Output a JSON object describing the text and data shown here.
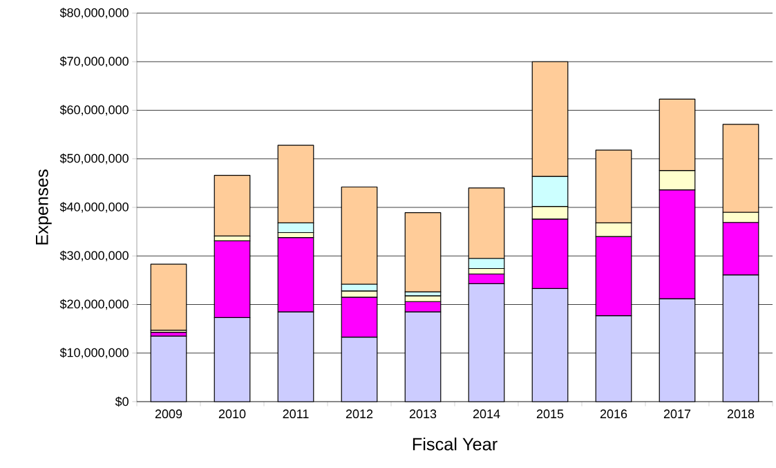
{
  "chart_data": {
    "type": "bar",
    "stacked": true,
    "xlabel": "Fiscal Year",
    "ylabel": "Expenses",
    "categories": [
      "2009",
      "2010",
      "2011",
      "2012",
      "2013",
      "2014",
      "2015",
      "2016",
      "2017",
      "2018"
    ],
    "series": [
      {
        "color": "#ccccff",
        "values": [
          13500000,
          17300000,
          18500000,
          13300000,
          18500000,
          24300000,
          23300000,
          17700000,
          21200000,
          26100000
        ]
      },
      {
        "color": "#ff00ff",
        "values": [
          800000,
          15800000,
          15300000,
          8200000,
          2100000,
          2000000,
          14300000,
          16300000,
          22400000,
          10800000
        ]
      },
      {
        "color": "#ffffcc",
        "values": [
          400000,
          1000000,
          1000000,
          1300000,
          1200000,
          1100000,
          2600000,
          2800000,
          4000000,
          2100000
        ]
      },
      {
        "color": "#ccffff",
        "values": [
          null,
          null,
          2000000,
          1400000,
          800000,
          2100000,
          6200000,
          null,
          null,
          null
        ]
      },
      {
        "color": "#ffcc99",
        "values": [
          13600000,
          12500000,
          16000000,
          20000000,
          16300000,
          14500000,
          23600000,
          15000000,
          14700000,
          18100000
        ]
      }
    ],
    "ylim": [
      0,
      80000000
    ],
    "yticks": [
      {
        "value": 0,
        "label": "$0"
      },
      {
        "value": 10000000,
        "label": "$10,000,000"
      },
      {
        "value": 20000000,
        "label": "$20,000,000"
      },
      {
        "value": 30000000,
        "label": "$30,000,000"
      },
      {
        "value": 40000000,
        "label": "$40,000,000"
      },
      {
        "value": 50000000,
        "label": "$50,000,000"
      },
      {
        "value": 60000000,
        "label": "$60,000,000"
      },
      {
        "value": 70000000,
        "label": "$70,000,000"
      },
      {
        "value": 80000000,
        "label": "$80,000,000"
      }
    ],
    "grid": "y",
    "legend": false
  }
}
